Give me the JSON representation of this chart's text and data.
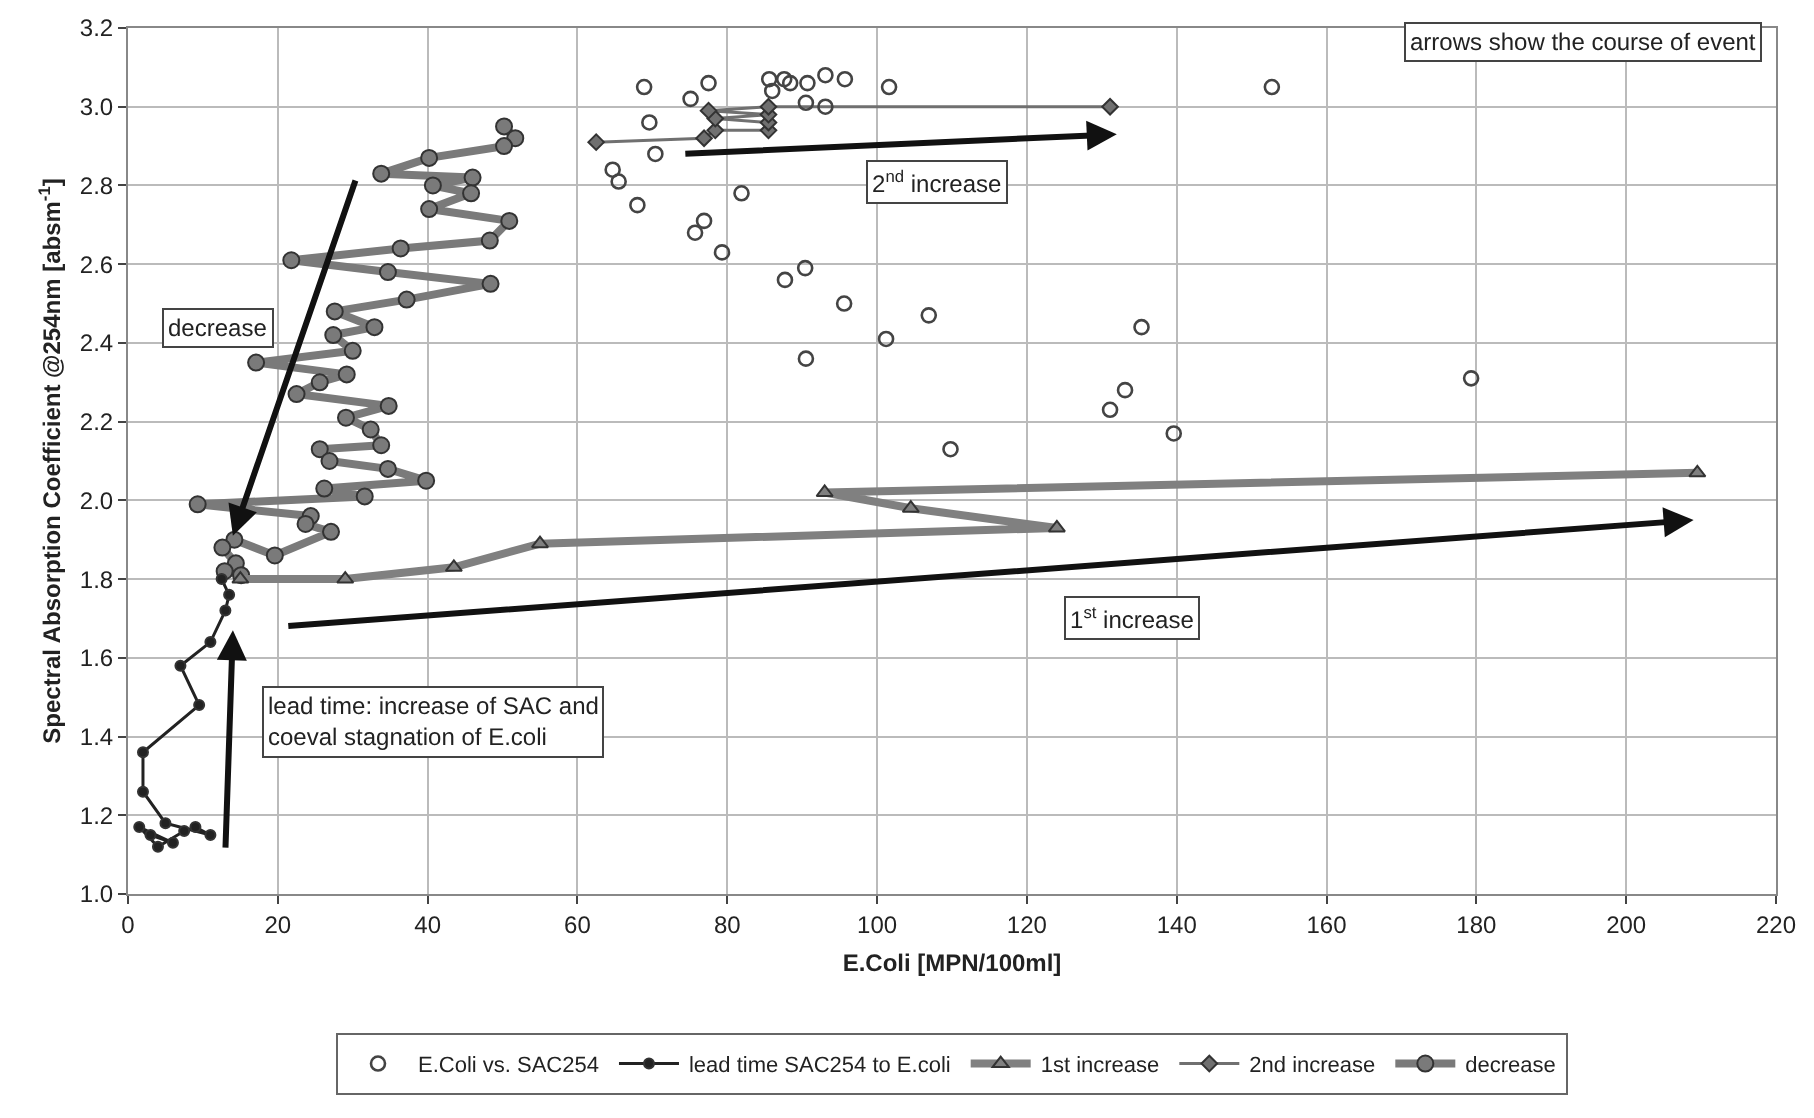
{
  "chart_data": {
    "type": "line",
    "xlabel": "E.Coli [MPN/100ml]",
    "ylabel": "Spectral Absorption Coefficient @254nm [absm$^{-1}$]",
    "xlim": [
      0,
      220
    ],
    "xticks": [
      0,
      20,
      40,
      60,
      80,
      100,
      120,
      140,
      160,
      180,
      200,
      220
    ],
    "ylim": [
      1,
      3.2
    ],
    "yticks": [
      {
        "value": 1,
        "label": "1.0"
      },
      1.2,
      1.4,
      1.6,
      1.8,
      {
        "value": 2,
        "label": "2.0"
      },
      2.2,
      2.4,
      2.6,
      2.8,
      {
        "value": 3,
        "label": "3.0"
      },
      3.2
    ],
    "grid": true,
    "legend": "bottom",
    "annotations": [
      "arrows show the course of event",
      "2$^{nd}$ increase",
      "decrease",
      "1$^{st}$ increase",
      "lead time: increase of SAC and coeval stagnation of E.coli"
    ],
    "series": [
      {
        "name": "E.Coli vs. SAC254",
        "type": "scatter",
        "marker": "circle",
        "color": "#444444",
        "x": [
          68.9,
          77.5,
          75.1,
          85.6,
          87.6,
          88.4,
          86.0,
          90.7,
          93.1,
          95.7,
          101.6,
          90.5,
          93.1,
          69.6,
          70.4,
          64.7,
          65.5,
          68.0,
          81.9,
          76.9,
          75.7,
          79.3,
          90.4,
          87.7,
          95.6,
          106.9,
          101.2,
          90.5,
          133.1,
          131.1,
          109.8,
          152.7,
          135.3,
          139.6,
          179.3
        ],
        "values": [
          3.05,
          3.06,
          3.02,
          3.07,
          3.07,
          3.06,
          3.04,
          3.06,
          3.08,
          3.07,
          3.05,
          3.01,
          3.0,
          2.96,
          2.88,
          2.84,
          2.81,
          2.75,
          2.78,
          2.71,
          2.68,
          2.63,
          2.59,
          2.56,
          2.5,
          2.47,
          2.41,
          2.36,
          2.28,
          2.23,
          2.13,
          3.05,
          2.44,
          2.17,
          2.31
        ]
      },
      {
        "name": "lead time SAC254 to E.coli",
        "marker": "circle",
        "color": "#222222",
        "x": [
          3,
          6,
          1.5,
          4,
          7.5,
          9,
          11,
          5,
          2,
          2,
          9.5,
          7,
          11,
          13,
          13.5,
          12.5
        ],
        "values": [
          1.15,
          1.13,
          1.17,
          1.12,
          1.16,
          1.17,
          1.15,
          1.18,
          1.26,
          1.36,
          1.48,
          1.58,
          1.64,
          1.72,
          1.76,
          1.8
        ]
      },
      {
        "name": "1st increase",
        "marker": "triangle",
        "color": "#808080",
        "x": [
          15,
          29,
          43.5,
          55,
          124,
          104.5,
          93,
          209.5
        ],
        "values": [
          1.8,
          1.8,
          1.83,
          1.89,
          1.93,
          1.98,
          2.02,
          2.07
        ]
      },
      {
        "name": "2nd increase",
        "marker": "diamond",
        "color": "#707070",
        "x": [
          62.5,
          76.9,
          78.4,
          85.5,
          85.5,
          78.4,
          85.5,
          77.5,
          85.5,
          131.1
        ],
        "values": [
          2.91,
          2.92,
          2.94,
          2.94,
          2.96,
          2.97,
          2.98,
          2.99,
          3.0,
          3.0
        ]
      },
      {
        "name": "decrease",
        "marker": "circle",
        "color": "#7a7a7a",
        "x": [
          50.2,
          51.7,
          50.2,
          40.2,
          33.8,
          46.0,
          40.7,
          45.8,
          40.2,
          50.9,
          48.3,
          36.4,
          21.8,
          34.7,
          48.4,
          37.2,
          27.6,
          32.9,
          27.4,
          30.0,
          17.1,
          29.2,
          25.6,
          22.5,
          34.8,
          29.1,
          32.4,
          33.8,
          25.6,
          26.9,
          34.7,
          39.8,
          26.2,
          31.6,
          9.3,
          24.4,
          23.7,
          27.1,
          19.6,
          14.2,
          12.6,
          14.4,
          12.9,
          15.1
        ],
        "values": [
          2.95,
          2.92,
          2.9,
          2.87,
          2.83,
          2.82,
          2.8,
          2.78,
          2.74,
          2.71,
          2.66,
          2.64,
          2.61,
          2.58,
          2.55,
          2.51,
          2.48,
          2.44,
          2.42,
          2.38,
          2.35,
          2.32,
          2.3,
          2.27,
          2.24,
          2.21,
          2.18,
          2.14,
          2.13,
          2.1,
          2.08,
          2.05,
          2.03,
          2.01,
          1.99,
          1.96,
          1.94,
          1.92,
          1.86,
          1.9,
          1.88,
          1.84,
          1.82,
          1.81
        ]
      }
    ]
  }
}
